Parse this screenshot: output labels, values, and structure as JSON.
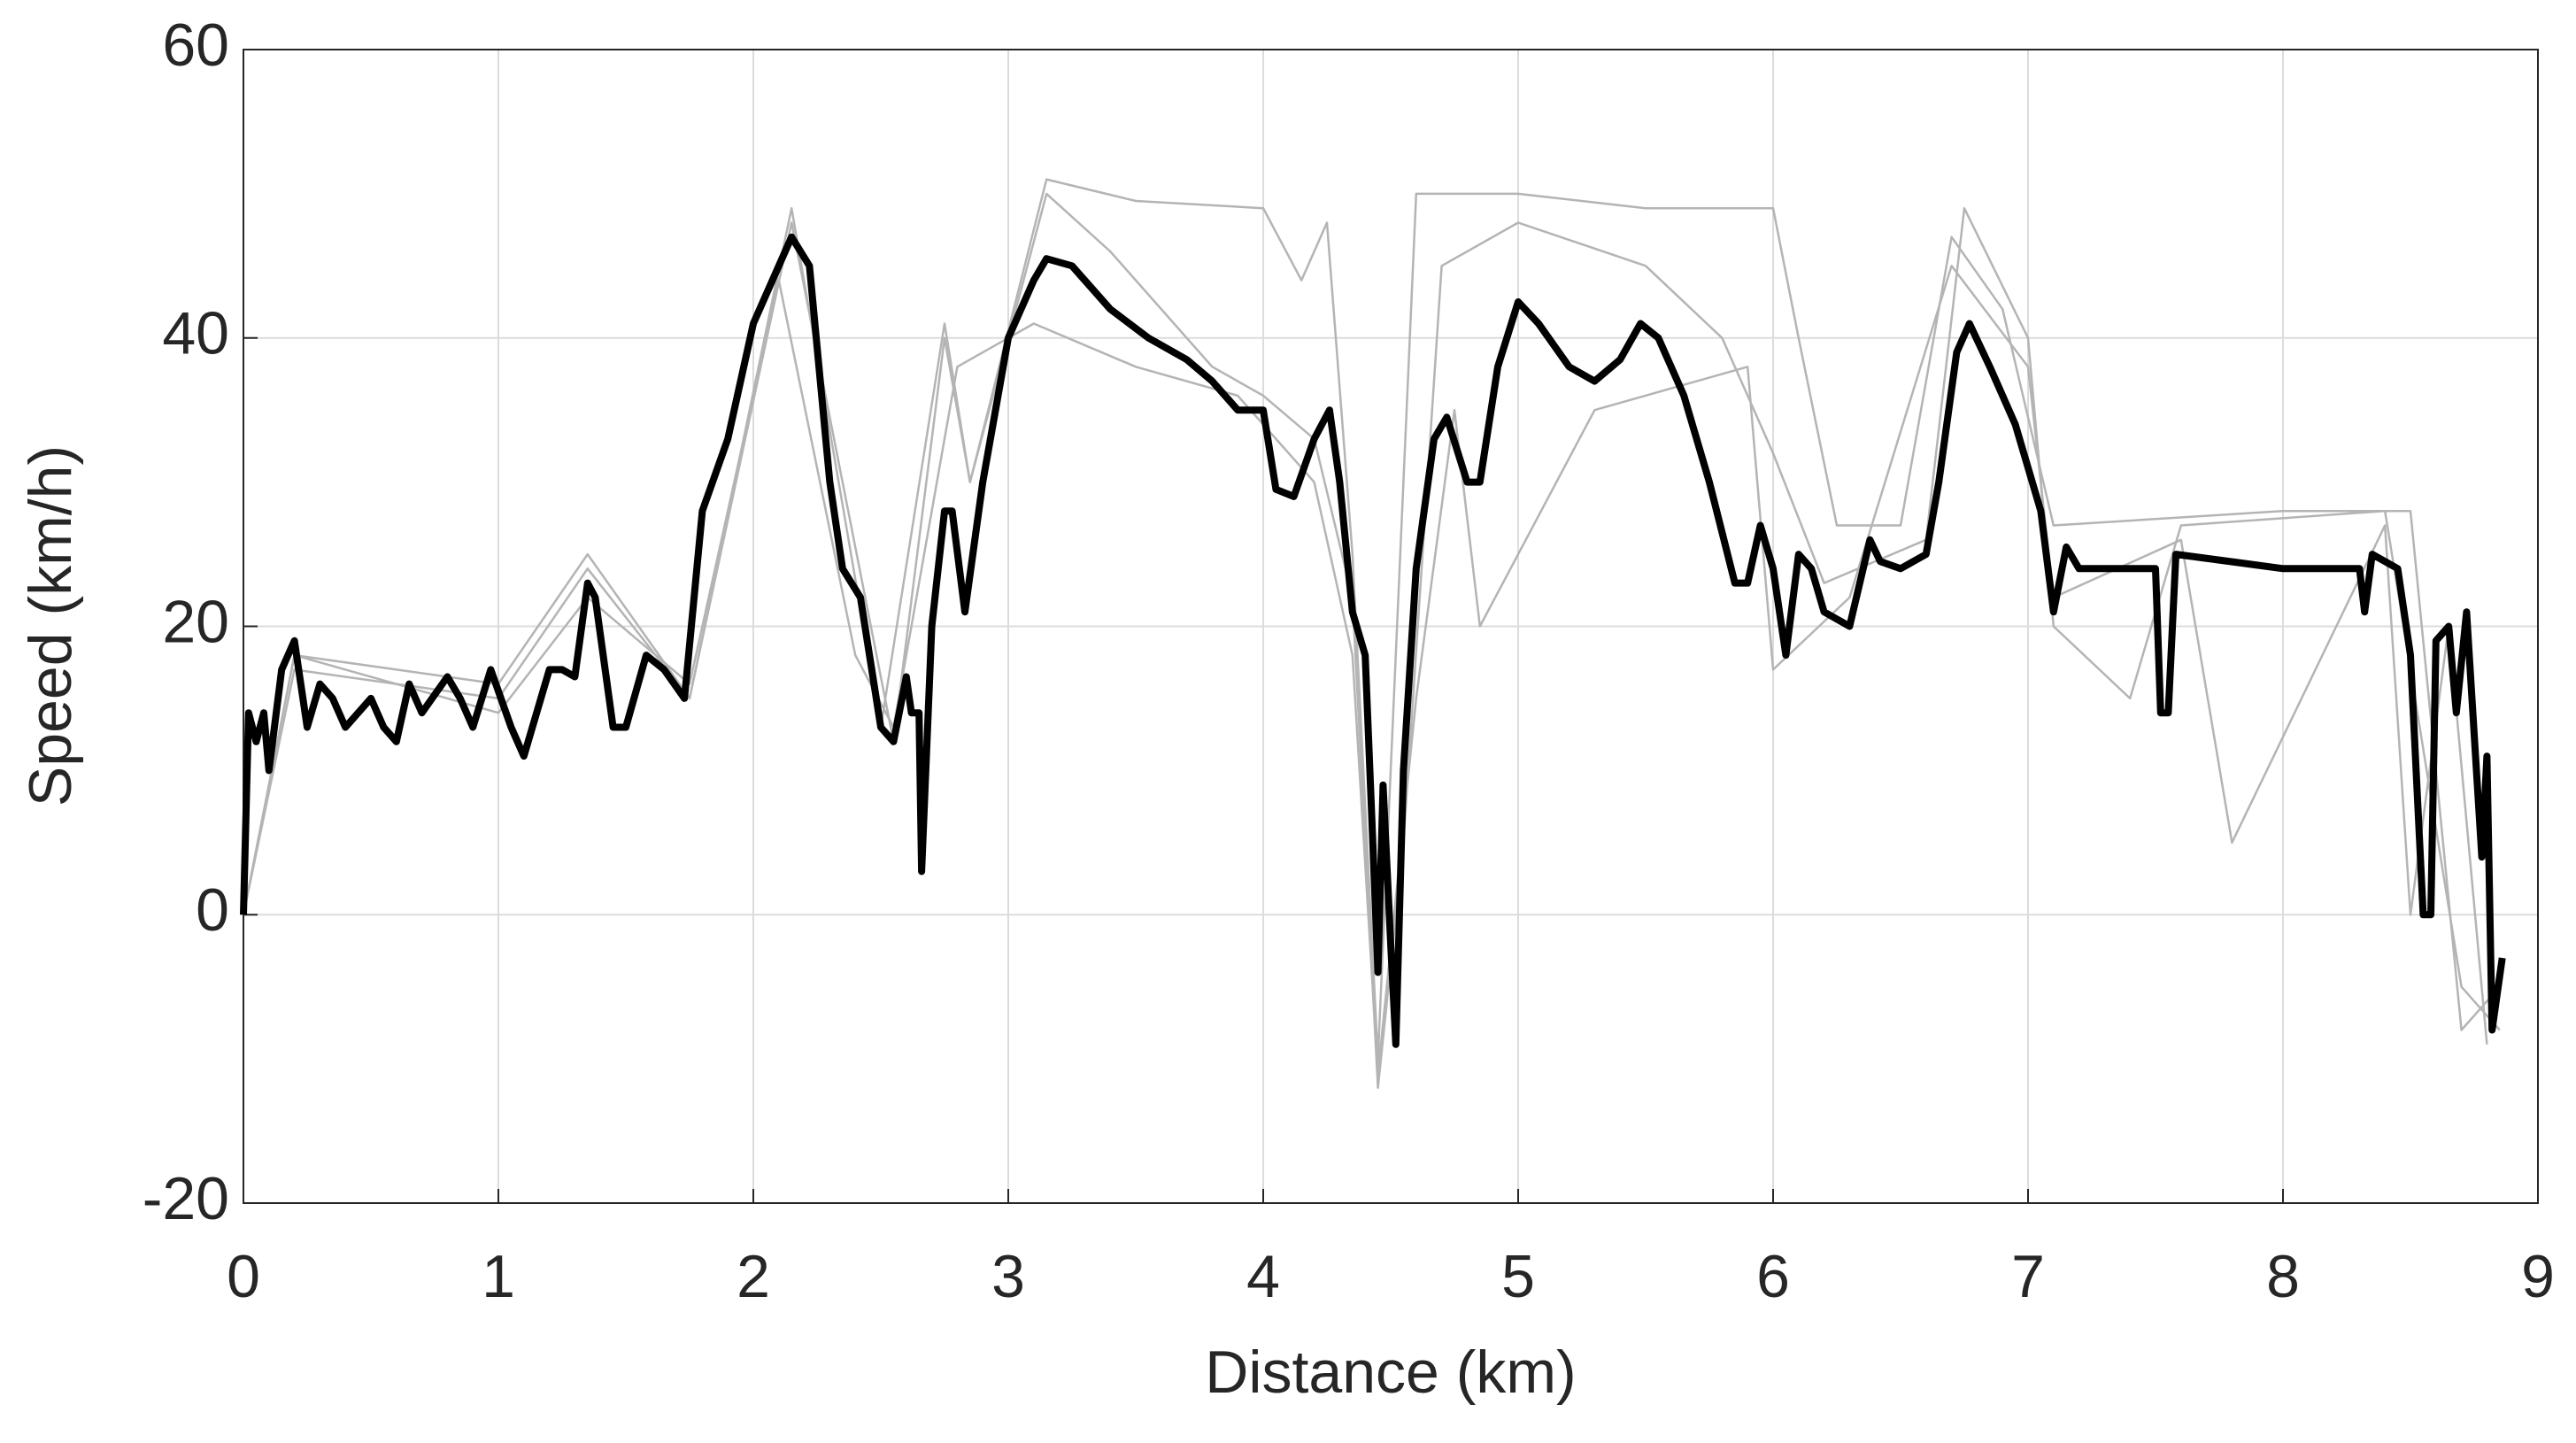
{
  "chart_data": {
    "type": "line",
    "xlabel": "Distance (km)",
    "ylabel": "Speed (km/h)",
    "xlim": [
      0,
      9
    ],
    "xticks": [
      0,
      1,
      2,
      3,
      4,
      5,
      6,
      7,
      8,
      9
    ],
    "ylim": [
      -20,
      60
    ],
    "yticks": [
      -20,
      0,
      20,
      40,
      60
    ],
    "grid": true,
    "series": [
      {
        "color": "#b4b4b4",
        "x": [
          0,
          0.2,
          1.0,
          1.35,
          1.75,
          2.15,
          2.5,
          2.75,
          2.85,
          3.15,
          3.5,
          4.0,
          4.15,
          4.25,
          4.35,
          4.45,
          4.55,
          4.6,
          5.0,
          5.5,
          6.0,
          6.1,
          6.25,
          6.5,
          6.7,
          6.9,
          7.1,
          8.0,
          8.5,
          8.6,
          8.7,
          8.85
        ],
        "values": [
          0,
          18,
          16,
          25,
          15,
          49,
          13,
          41,
          30,
          51,
          49.5,
          49,
          44,
          48,
          25,
          -10,
          30,
          50,
          50,
          49,
          49,
          40,
          27,
          27,
          47,
          42,
          27,
          28,
          28,
          10,
          -8,
          -5
        ]
      },
      {
        "color": "#b4b4b4",
        "x": [
          0,
          0.2,
          1.0,
          1.35,
          1.75,
          2.15,
          2.55,
          2.75,
          2.85,
          3.15,
          3.4,
          3.6,
          3.8,
          4.0,
          4.2,
          4.35,
          4.45,
          4.55,
          4.7,
          5.0,
          5.5,
          5.8,
          6.0,
          6.2,
          6.6,
          6.75,
          7.0,
          7.1,
          7.4,
          7.6,
          8.4,
          8.7,
          8.85
        ],
        "values": [
          0,
          17,
          15,
          24,
          15,
          48,
          12,
          40,
          30,
          50,
          46,
          42,
          38,
          36,
          33,
          22,
          -12,
          5,
          45,
          48,
          45,
          40,
          32,
          23,
          26,
          49,
          40,
          20,
          15,
          27,
          28,
          -5,
          -8
        ]
      },
      {
        "color": "#b4b4b4",
        "x": [
          0,
          0.2,
          1.0,
          1.35,
          1.75,
          2.1,
          2.4,
          2.55,
          2.8,
          3.1,
          3.5,
          3.9,
          4.2,
          4.35,
          4.45,
          4.6,
          4.75,
          4.85,
          5.3,
          5.9,
          6.0,
          6.3,
          6.7,
          7.0,
          7.1,
          7.6,
          7.8,
          8.4,
          8.5,
          8.65,
          8.8
        ],
        "values": [
          0,
          18,
          14,
          22,
          16,
          44,
          18,
          13,
          38,
          41,
          38,
          36,
          30,
          18,
          -11,
          15,
          35,
          20,
          35,
          38,
          17,
          22,
          45,
          38,
          22,
          26,
          5,
          27,
          0,
          20,
          -9
        ]
      },
      {
        "color": "#000000",
        "x": [
          0,
          0.02,
          0.05,
          0.08,
          0.1,
          0.15,
          0.2,
          0.25,
          0.3,
          0.35,
          0.4,
          0.5,
          0.55,
          0.6,
          0.65,
          0.7,
          0.8,
          0.85,
          0.9,
          0.97,
          1.05,
          1.1,
          1.2,
          1.25,
          1.3,
          1.35,
          1.38,
          1.45,
          1.5,
          1.58,
          1.65,
          1.73,
          1.8,
          1.9,
          2.0,
          2.1,
          2.15,
          2.22,
          2.3,
          2.35,
          2.42,
          2.5,
          2.55,
          2.6,
          2.62,
          2.65,
          2.66,
          2.7,
          2.75,
          2.78,
          2.83,
          2.9,
          3.0,
          3.1,
          3.15,
          3.25,
          3.4,
          3.55,
          3.7,
          3.8,
          3.9,
          4.0,
          4.05,
          4.12,
          4.2,
          4.26,
          4.3,
          4.35,
          4.4,
          4.43,
          4.45,
          4.47,
          4.5,
          4.52,
          4.55,
          4.6,
          4.67,
          4.72,
          4.8,
          4.85,
          4.92,
          5.0,
          5.08,
          5.2,
          5.3,
          5.4,
          5.48,
          5.55,
          5.65,
          5.75,
          5.85,
          5.9,
          5.95,
          6.0,
          6.05,
          6.1,
          6.15,
          6.2,
          6.3,
          6.38,
          6.42,
          6.5,
          6.6,
          6.65,
          6.72,
          6.77,
          6.85,
          6.95,
          7.05,
          7.1,
          7.15,
          7.2,
          7.5,
          7.52,
          7.55,
          7.58,
          8.0,
          8.3,
          8.32,
          8.35,
          8.45,
          8.5,
          8.55,
          8.58,
          8.6,
          8.65,
          8.68,
          8.72,
          8.78,
          8.8,
          8.82,
          8.86
        ],
        "values": [
          0,
          14,
          12,
          14,
          10,
          17,
          19,
          13,
          16,
          15,
          13,
          15,
          13,
          12,
          16,
          14,
          16.5,
          15,
          13,
          17,
          13,
          11,
          17,
          17,
          16.5,
          23,
          22,
          13,
          13,
          18,
          17,
          15,
          28,
          33,
          41,
          45,
          47,
          45,
          30,
          24,
          22,
          13,
          12,
          16.5,
          14,
          14,
          3,
          20,
          28,
          28,
          21,
          30,
          40,
          44,
          45.5,
          45,
          42,
          40,
          38.5,
          37,
          35,
          35,
          29.5,
          29,
          33,
          35,
          30,
          21,
          18,
          5,
          -4,
          9,
          -2,
          -9,
          10,
          24,
          33,
          34.5,
          30,
          30,
          38,
          42.5,
          41,
          38,
          37,
          38.5,
          41,
          40,
          36,
          30,
          23,
          23,
          27,
          24,
          18,
          25,
          24,
          21,
          20,
          26,
          24.5,
          24,
          25,
          30,
          39,
          41,
          38,
          34,
          28,
          21,
          25.5,
          24,
          24,
          14,
          14,
          25,
          24,
          24,
          21,
          25,
          24,
          18,
          0,
          0,
          19,
          20,
          14,
          21,
          4,
          11,
          -8,
          -3
        ]
      }
    ]
  }
}
